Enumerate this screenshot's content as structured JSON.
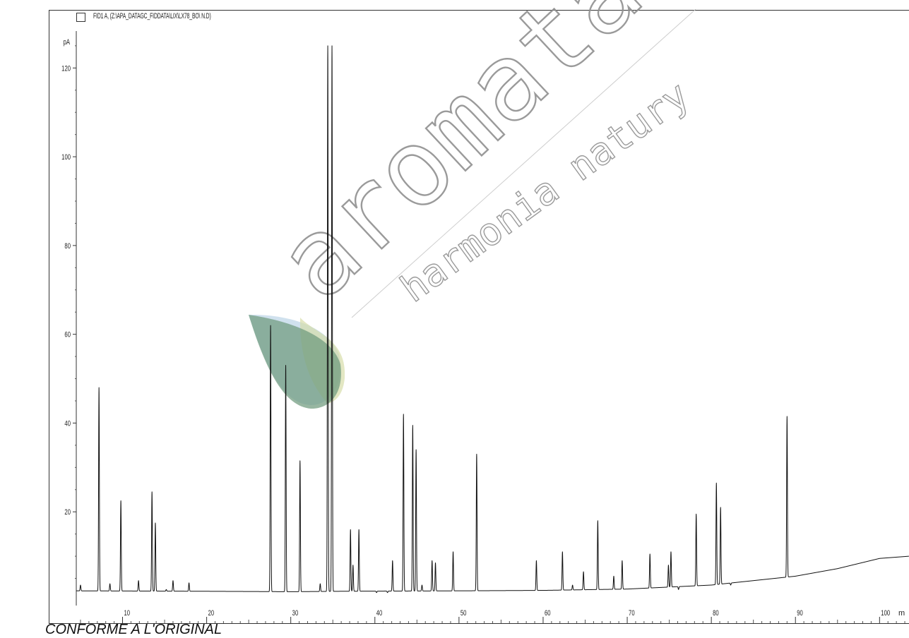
{
  "legend": "FID1 A, (Z:\\APA_DATAGC_FIDDATA\\LIX\\LX78_BO\\ N.D)",
  "footer_note": "CONFORME A L'ORIGINAL",
  "watermark": {
    "brand": "aromatari",
    "tagline": "harmonia natury",
    "leaf_colors": [
      "#5e8f6f",
      "#a8c8e0",
      "#cfd79a"
    ]
  },
  "chart_data": {
    "type": "line",
    "title": "",
    "ylabel": "pA",
    "xlabel": "m",
    "xlim": [
      4.5,
      103.5
    ],
    "ylim": [
      0,
      128
    ],
    "x_ticks": [
      10,
      20,
      30,
      40,
      50,
      60,
      70,
      80,
      90,
      100
    ],
    "y_ticks": [
      20,
      40,
      60,
      80,
      100,
      120
    ],
    "grid": false,
    "line_color": "#111111",
    "baseline": [
      [
        4.5,
        2.2
      ],
      [
        20,
        2.1
      ],
      [
        30,
        2.0
      ],
      [
        36,
        2.1
      ],
      [
        50,
        2.2
      ],
      [
        60,
        2.3
      ],
      [
        70,
        2.6
      ],
      [
        80,
        3.5
      ],
      [
        85,
        4.5
      ],
      [
        90,
        5.5
      ],
      [
        95,
        7.2
      ],
      [
        100,
        9.5
      ],
      [
        103.5,
        10.0
      ]
    ],
    "series": [
      {
        "peaks": [
          [
            5.0,
            3.5
          ],
          [
            7.2,
            48
          ],
          [
            8.5,
            3.8
          ],
          [
            9.8,
            22.5
          ],
          [
            11.9,
            4.5
          ],
          [
            13.5,
            24.5
          ],
          [
            13.9,
            17.5
          ],
          [
            15.2,
            2.5
          ],
          [
            16.0,
            4.5
          ],
          [
            17.9,
            4.0
          ],
          [
            27.6,
            62
          ],
          [
            29.4,
            53
          ],
          [
            31.1,
            31.5
          ],
          [
            33.5,
            3.8
          ],
          [
            34.4,
            125
          ],
          [
            34.9,
            125
          ],
          [
            37.1,
            16
          ],
          [
            37.4,
            8
          ],
          [
            38.1,
            16
          ],
          [
            40.2,
            1.8
          ],
          [
            41.5,
            1.8
          ],
          [
            42.1,
            9
          ],
          [
            43.4,
            42
          ],
          [
            44.5,
            39.5
          ],
          [
            44.9,
            34
          ],
          [
            45.6,
            3.5
          ],
          [
            46.8,
            9
          ],
          [
            47.2,
            8.5
          ],
          [
            49.3,
            11
          ],
          [
            52.1,
            33
          ],
          [
            59.2,
            9
          ],
          [
            62.3,
            11
          ],
          [
            63.5,
            3.5
          ],
          [
            64.8,
            6.5
          ],
          [
            66.5,
            18
          ],
          [
            68.4,
            5.5
          ],
          [
            69.4,
            9
          ],
          [
            72.7,
            10.5
          ],
          [
            74.9,
            8
          ],
          [
            75.2,
            11
          ],
          [
            76.1,
            2.5
          ],
          [
            78.2,
            19.5
          ],
          [
            80.6,
            26.5
          ],
          [
            81.1,
            21
          ],
          [
            82.3,
            3.5
          ],
          [
            89.0,
            41.5
          ]
        ]
      }
    ]
  }
}
